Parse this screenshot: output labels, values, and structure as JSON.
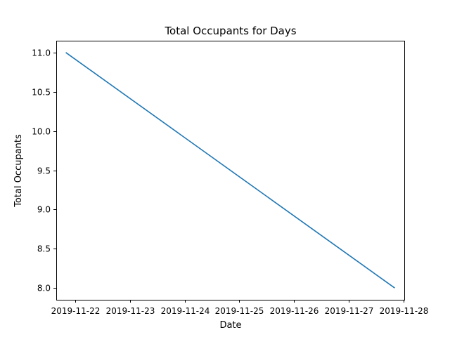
{
  "chart_data": {
    "type": "line",
    "title": "Total Occupants for Days",
    "xlabel": "Date",
    "ylabel": "Total Occupants",
    "x": [
      "2019-11-21 20:00",
      "2019-11-27 20:00"
    ],
    "series": [
      {
        "color": "#1f77b4",
        "values": [
          11.0,
          8.0
        ]
      }
    ],
    "xticks": [
      "2019-11-22",
      "2019-11-23",
      "2019-11-24",
      "2019-11-25",
      "2019-11-26",
      "2019-11-27",
      "2019-11-28"
    ],
    "yticks": [
      "8.0",
      "8.5",
      "9.0",
      "9.5",
      "10.0",
      "10.5",
      "11.0"
    ],
    "xlim": [
      "2019-11-21 15:48",
      "2019-11-28 00:12"
    ],
    "ylim": [
      7.85,
      11.15
    ],
    "grid": false,
    "legend": "none"
  }
}
